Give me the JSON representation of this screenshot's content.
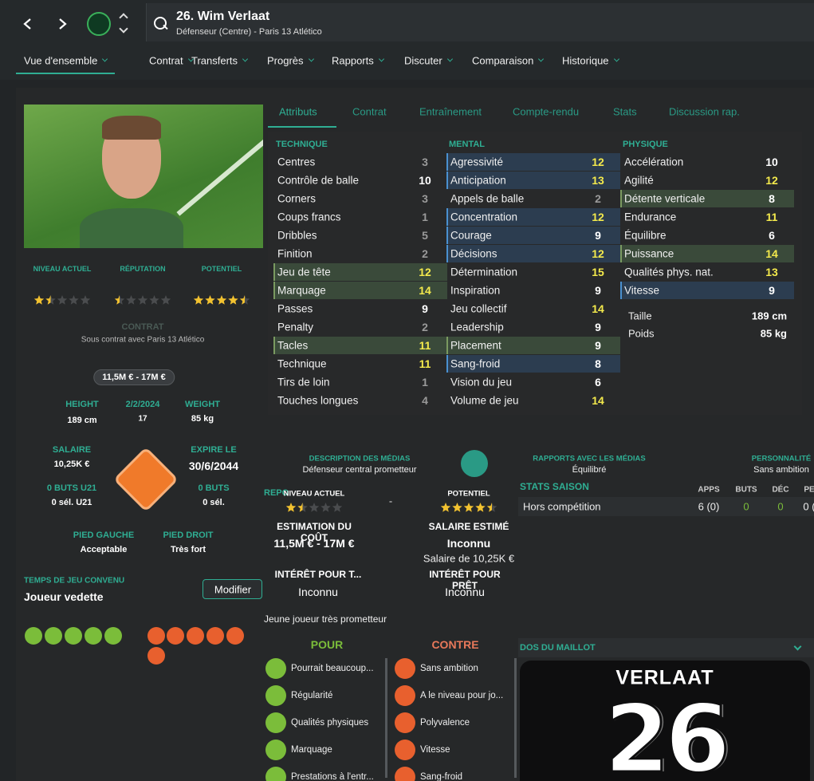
{
  "header": {
    "title": "26. Wim Verlaat",
    "subtitle": "Défenseur (Centre) - Paris 13 Atlético"
  },
  "nav_tabs": [
    "Vue d'ensemble",
    "Contrat",
    "Transferts",
    "Progrès",
    "Rapports",
    "Discuter",
    "Comparaison",
    "Historique"
  ],
  "sub_tabs": [
    "Attributs",
    "Contrat",
    "Entraînement",
    "Compte-rendu",
    "Stats",
    "Discussion rap."
  ],
  "attributes": [
    {
      "title": "TECHNIQUE",
      "rows": [
        {
          "name": "Centres",
          "value": 3
        },
        {
          "name": "Contrôle de balle",
          "value": 10
        },
        {
          "name": "Corners",
          "value": 3
        },
        {
          "name": "Coups francs",
          "value": 1
        },
        {
          "name": "Dribbles",
          "value": 5
        },
        {
          "name": "Finition",
          "value": 2
        },
        {
          "name": "Jeu de tête",
          "value": 12,
          "highlight": "green"
        },
        {
          "name": "Marquage",
          "value": 14,
          "highlight": "green"
        },
        {
          "name": "Passes",
          "value": 9
        },
        {
          "name": "Penalty",
          "value": 2
        },
        {
          "name": "Tacles",
          "value": 11,
          "highlight": "green"
        },
        {
          "name": "Technique",
          "value": 11
        },
        {
          "name": "Tirs de loin",
          "value": 1
        },
        {
          "name": "Touches longues",
          "value": 4
        }
      ]
    },
    {
      "title": "MENTAL",
      "rows": [
        {
          "name": "Agressivité",
          "value": 12,
          "highlight": "blue"
        },
        {
          "name": "Anticipation",
          "value": 13,
          "highlight": "blue"
        },
        {
          "name": "Appels de balle",
          "value": 2
        },
        {
          "name": "Concentration",
          "value": 12,
          "highlight": "blue"
        },
        {
          "name": "Courage",
          "value": 9,
          "highlight": "blue"
        },
        {
          "name": "Décisions",
          "value": 12,
          "highlight": "blue"
        },
        {
          "name": "Détermination",
          "value": 15
        },
        {
          "name": "Inspiration",
          "value": 9
        },
        {
          "name": "Jeu collectif",
          "value": 14
        },
        {
          "name": "Leadership",
          "value": 9
        },
        {
          "name": "Placement",
          "value": 9,
          "highlight": "green"
        },
        {
          "name": "Sang-froid",
          "value": 8,
          "highlight": "blue"
        },
        {
          "name": "Vision du jeu",
          "value": 6
        },
        {
          "name": "Volume de jeu",
          "value": 14
        }
      ]
    },
    {
      "title": "PHYSIQUE",
      "rows": [
        {
          "name": "Accélération",
          "value": 10
        },
        {
          "name": "Agilité",
          "value": 12
        },
        {
          "name": "Détente verticale",
          "value": 8,
          "highlight": "green"
        },
        {
          "name": "Endurance",
          "value": 11
        },
        {
          "name": "Équilibre",
          "value": 6
        },
        {
          "name": "Puissance",
          "value": 14,
          "highlight": "green"
        },
        {
          "name": "Qualités phys. nat.",
          "value": 13
        },
        {
          "name": "Vitesse",
          "value": 9,
          "highlight": "blue"
        }
      ]
    }
  ],
  "body": [
    {
      "label": "Taille",
      "value": "189 cm"
    },
    {
      "label": "Poids",
      "value": "85 kg"
    }
  ],
  "ratings": [
    {
      "label": "NIVEAU ACTUEL",
      "stars": 1.5
    },
    {
      "label": "RÉPUTATION",
      "stars": 0.5
    },
    {
      "label": "POTENTIEL",
      "stars": 4.5
    }
  ],
  "contract": {
    "title": "CONTRAT",
    "text": "Sous contrat avec Paris 13 Atlético",
    "value": "11,5M € - 17M €"
  },
  "info": [
    {
      "label": "HEIGHT",
      "value": "189 cm"
    },
    {
      "label": "2/2/2024",
      "value": "17"
    },
    {
      "label": "WEIGHT",
      "value": "85 kg"
    },
    {
      "label": "SALAIRE",
      "value": "10,25K €"
    },
    {
      "label": "EXPIRE LE",
      "value": "30/6/2044"
    },
    {
      "label": "0 BUTS U21",
      "value": "0 sél. U21"
    },
    {
      "label": "0 BUTS",
      "value": "0 sél."
    },
    {
      "label": "PIED GAUCHE",
      "value": "Acceptable"
    },
    {
      "label": "PIED DROIT",
      "value": "Très fort"
    }
  ],
  "playing_time": {
    "label": "TEMPS DE JEU CONVENU",
    "value": "Joueur vedette",
    "button": "Modifier"
  },
  "media": [
    {
      "label": "DESCRIPTION DES MÉDIAS",
      "value": "Défenseur central prometteur"
    },
    {
      "label": "RAPPORTS AVEC LES MÉDIAS",
      "value": "Équilibré"
    },
    {
      "label": "PERSONNALITÉ",
      "value": "Sans ambition"
    }
  ],
  "report": {
    "title": "REPO",
    "current_label": "NIVEAU ACTUEL",
    "current_stars": 1.5,
    "dash": "-",
    "potential_label": "POTENTIEL",
    "potential_stars": 4.5,
    "fields": [
      {
        "label": "ESTIMATION DU COÛT",
        "value": "11,5M € - 17M €"
      },
      {
        "label": "SALAIRE ESTIMÉ",
        "value": "Inconnu",
        "note": "Salaire de 10,25K €"
      },
      {
        "label": "INTÉRÊT POUR T...",
        "value": "Inconnu"
      },
      {
        "label": "INTÉRÊT POUR PRÊT",
        "value": "Inconnu"
      }
    ],
    "summary": "Jeune joueur très prometteur",
    "pros_title": "POUR",
    "pros": [
      "Pourrait beaucoup...",
      "Régularité",
      "Qualités physiques",
      "Marquage",
      "Prestations à l'entr..."
    ],
    "cons_title": "CONTRE",
    "cons": [
      "Sans ambition",
      "A le niveau pour jo...",
      "Polyvalence",
      "Vitesse",
      "Sang-froid"
    ]
  },
  "season_stats": {
    "title": "STATS SAISON",
    "columns": [
      "APPS",
      "BUTS",
      "DÉC",
      "PE"
    ],
    "rows": [
      {
        "label": "Hors compétition",
        "cells": [
          "6 (0)",
          "0",
          "0",
          "0 ("
        ]
      }
    ]
  },
  "shirt": {
    "title": "DOS DU MAILLOT",
    "name": "VERLAAT",
    "number": "26"
  }
}
